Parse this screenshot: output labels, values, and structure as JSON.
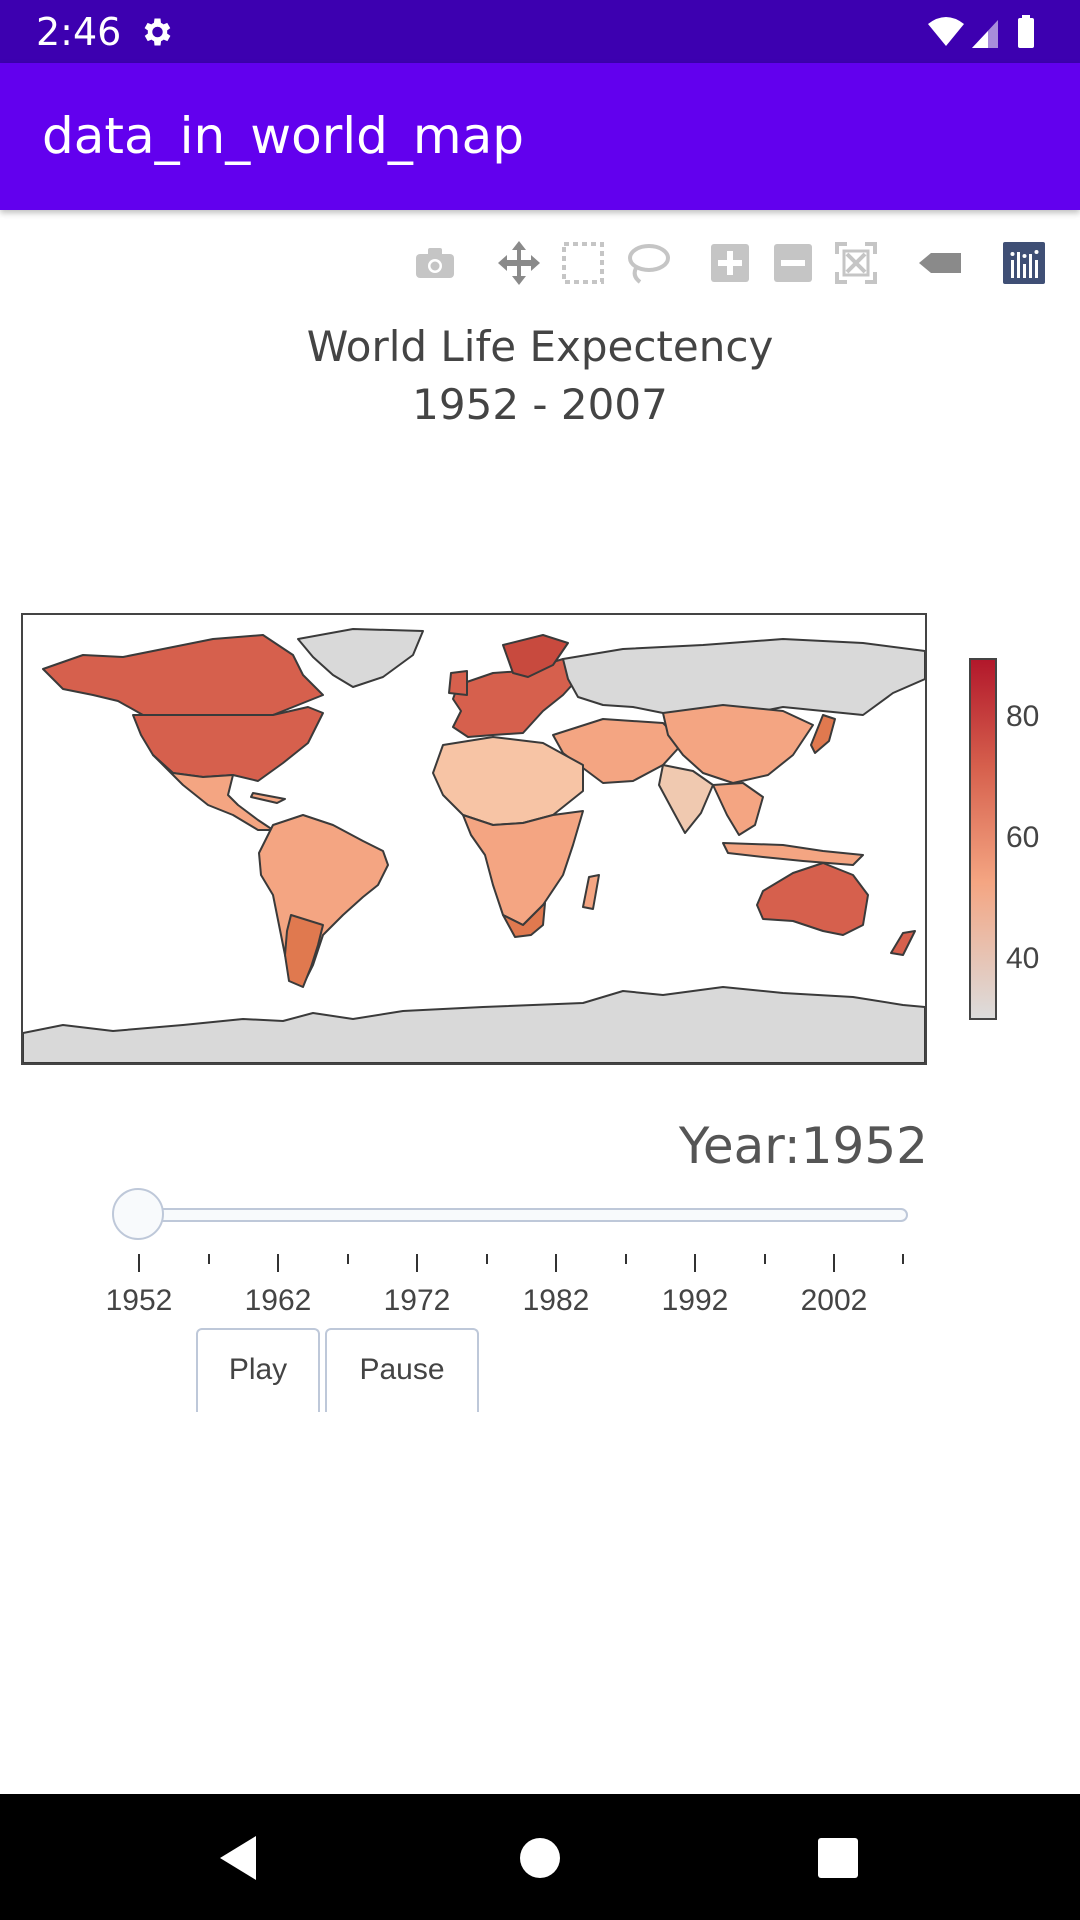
{
  "status_bar": {
    "time": "2:46"
  },
  "app_bar": {
    "title": "data_in_world_map"
  },
  "modebar": {
    "icons": [
      "camera-icon",
      "pan-icon",
      "box-select-icon",
      "lasso-icon",
      "zoom-in-icon",
      "zoom-out-icon",
      "reset-scale-icon",
      "hover-label-icon",
      "plotly-logo-icon"
    ]
  },
  "chart_data": {
    "type": "choropleth",
    "title": "World Life Expectency",
    "subtitle": "1952 - 2007",
    "colorbar": {
      "ticks": [
        "80",
        "60",
        "40"
      ],
      "range": [
        28,
        90
      ],
      "colors": [
        "#dcdcdc",
        "#f4a582",
        "#d6604d",
        "#b2182b"
      ]
    },
    "no_data_color": "#d9d9d9",
    "slider": {
      "current_label": "Year:1952",
      "current_value": 1952,
      "range": [
        1952,
        2007
      ],
      "tick_labels": [
        "1952",
        "1962",
        "1972",
        "1982",
        "1992",
        "2002"
      ]
    }
  },
  "buttons": {
    "play": "Play",
    "pause": "Pause"
  }
}
